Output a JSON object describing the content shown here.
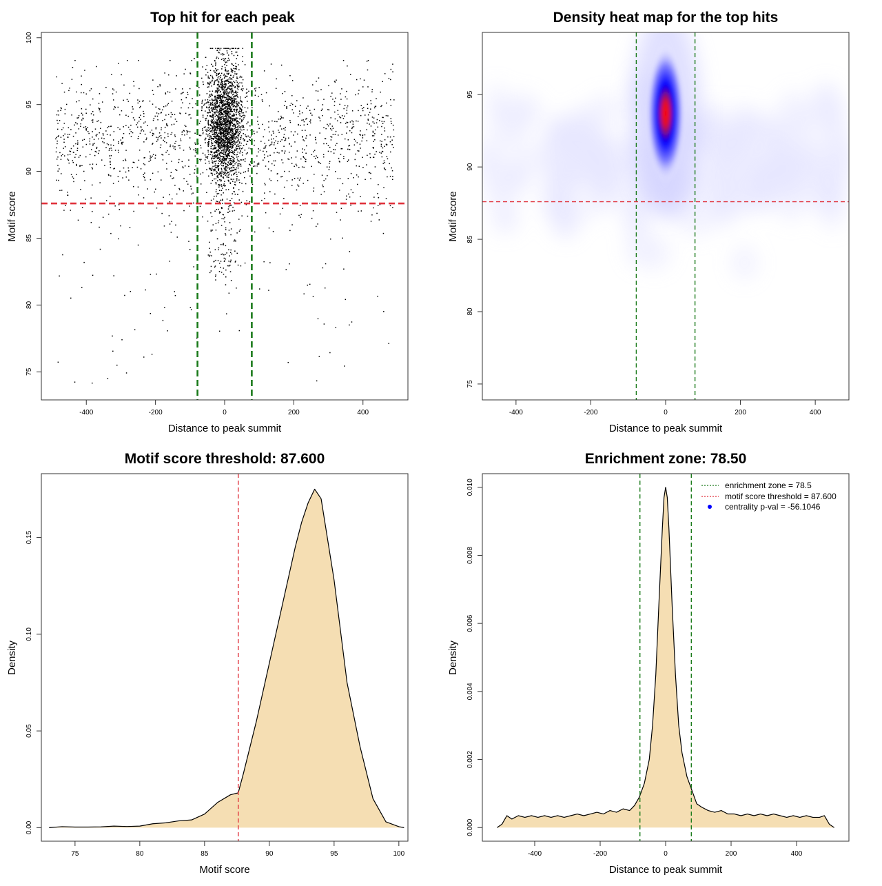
{
  "chart_data": [
    {
      "type": "scatter",
      "title": "Top hit for each peak",
      "xlabel": "Distance to peak summit",
      "ylabel": "Motif score",
      "xlim": [
        -530,
        530
      ],
      "ylim": [
        72.9,
        100.4
      ],
      "x_ticks": [
        -400,
        -200,
        0,
        200,
        400
      ],
      "y_ticks": [
        75,
        80,
        85,
        90,
        95,
        100
      ],
      "x_tick_labels": [
        "-400",
        "-200",
        "0",
        "200",
        "400"
      ],
      "y_tick_labels": [
        "75",
        "80",
        "85",
        "90",
        "95",
        "100"
      ],
      "threshold": 87.6,
      "zone_lines": [
        -78.5,
        78.5
      ],
      "points_description": "approx. 4000 points; background uniform over x in [-490, 490] with y mostly 85-98; dense central cluster at x ~ 0 (sd ~25), y ~ 93.5 (sd ~2.5)"
    },
    {
      "type": "heatmap",
      "title": "Density heat map for the top hits",
      "xlabel": "Distance to peak summit",
      "ylabel": "Motif score",
      "xlim": [
        -490,
        490
      ],
      "ylim": [
        73.9,
        99.3
      ],
      "x_ticks": [
        -400,
        -200,
        0,
        200,
        400
      ],
      "y_ticks": [
        75,
        80,
        85,
        90,
        95
      ],
      "x_tick_labels": [
        "-400",
        "-200",
        "0",
        "200",
        "400"
      ],
      "y_tick_labels": [
        "75",
        "80",
        "85",
        "90",
        "95"
      ],
      "threshold": 87.6,
      "zone_lines": [
        -78.5,
        78.5
      ],
      "peak": {
        "x": 0,
        "y": 93.7
      },
      "colors": [
        "#ffffff",
        "#0000ff",
        "#ff0000"
      ]
    },
    {
      "type": "area",
      "title": "Motif score threshold: 87.600",
      "xlabel": "Motif score",
      "ylabel": "Density",
      "xlim": [
        72.4,
        100.7
      ],
      "ylim": [
        -0.007,
        0.183
      ],
      "x_ticks": [
        75,
        80,
        85,
        90,
        95,
        100
      ],
      "y_ticks": [
        0.0,
        0.05,
        0.1,
        0.15
      ],
      "x_tick_labels": [
        "75",
        "80",
        "85",
        "90",
        "95",
        "100"
      ],
      "y_tick_labels": [
        "0.00",
        "0.05",
        "0.10",
        "0.15"
      ],
      "threshold": 87.6,
      "fill": "#f5deb3",
      "x": [
        73,
        74,
        75,
        76,
        77,
        78,
        79,
        80,
        81,
        82,
        83,
        84,
        85,
        86,
        87,
        87.6,
        88,
        89,
        90,
        91,
        92,
        92.5,
        93,
        93.5,
        94,
        95,
        96,
        97,
        98,
        99,
        100,
        100.4
      ],
      "y": [
        0.0,
        0.0005,
        0.0003,
        0.0003,
        0.0004,
        0.0008,
        0.0006,
        0.0008,
        0.002,
        0.0025,
        0.0035,
        0.004,
        0.007,
        0.013,
        0.017,
        0.018,
        0.028,
        0.055,
        0.085,
        0.115,
        0.145,
        0.158,
        0.168,
        0.175,
        0.17,
        0.128,
        0.075,
        0.042,
        0.015,
        0.003,
        0.0005,
        0.0
      ]
    },
    {
      "type": "area",
      "title": "Enrichment zone: 78.50",
      "xlabel": "Distance to peak summit",
      "ylabel": "Density",
      "xlim": [
        -560,
        560
      ],
      "ylim": [
        -0.0004,
        0.0104
      ],
      "x_ticks": [
        -400,
        -200,
        0,
        200,
        400
      ],
      "y_ticks": [
        0.0,
        0.002,
        0.004,
        0.006,
        0.008,
        0.01
      ],
      "x_tick_labels": [
        "-400",
        "-200",
        "0",
        "200",
        "400"
      ],
      "y_tick_labels": [
        "0.000",
        "0.002",
        "0.004",
        "0.006",
        "0.008",
        "0.010"
      ],
      "zone_lines": [
        -78.5,
        78.5
      ],
      "fill": "#f5deb3",
      "x": [
        -515,
        -500,
        -485,
        -470,
        -450,
        -430,
        -410,
        -390,
        -370,
        -350,
        -330,
        -310,
        -290,
        -270,
        -250,
        -230,
        -210,
        -190,
        -170,
        -150,
        -130,
        -110,
        -95,
        -80,
        -65,
        -50,
        -40,
        -30,
        -20,
        -10,
        -5,
        0,
        5,
        10,
        20,
        30,
        40,
        50,
        65,
        80,
        95,
        110,
        130,
        150,
        170,
        190,
        210,
        230,
        250,
        270,
        290,
        310,
        330,
        350,
        370,
        390,
        410,
        430,
        450,
        470,
        485,
        500,
        515
      ],
      "y": [
        0.0,
        0.0001,
        0.00035,
        0.00025,
        0.00035,
        0.0003,
        0.00035,
        0.0003,
        0.00035,
        0.0003,
        0.00035,
        0.0003,
        0.00035,
        0.0004,
        0.00035,
        0.0004,
        0.00045,
        0.0004,
        0.0005,
        0.00045,
        0.00055,
        0.0005,
        0.00065,
        0.0009,
        0.0013,
        0.002,
        0.003,
        0.0045,
        0.0067,
        0.0088,
        0.0097,
        0.01,
        0.0097,
        0.0088,
        0.0065,
        0.0045,
        0.003,
        0.0022,
        0.0015,
        0.0011,
        0.0007,
        0.0006,
        0.0005,
        0.00045,
        0.0005,
        0.0004,
        0.0004,
        0.00035,
        0.0004,
        0.00035,
        0.0004,
        0.00035,
        0.0004,
        0.00035,
        0.0003,
        0.00035,
        0.0003,
        0.00035,
        0.0003,
        0.0003,
        0.00035,
        0.0001,
        0.0
      ]
    }
  ],
  "legend": [
    {
      "label": "enrichment zone = 78.5",
      "color": "#1a7a1a",
      "marker": "dotted-line"
    },
    {
      "label": "motif score threshold = 87.600",
      "color": "#e0323c",
      "marker": "dotted-line"
    },
    {
      "label": "centrality p-val = -56.1046",
      "color": "#0000ff",
      "marker": "dot"
    }
  ],
  "colors": {
    "zone": "#1a7a1a",
    "threshold": "#e0323c",
    "fill": "#f5deb3",
    "points": "#000000"
  }
}
